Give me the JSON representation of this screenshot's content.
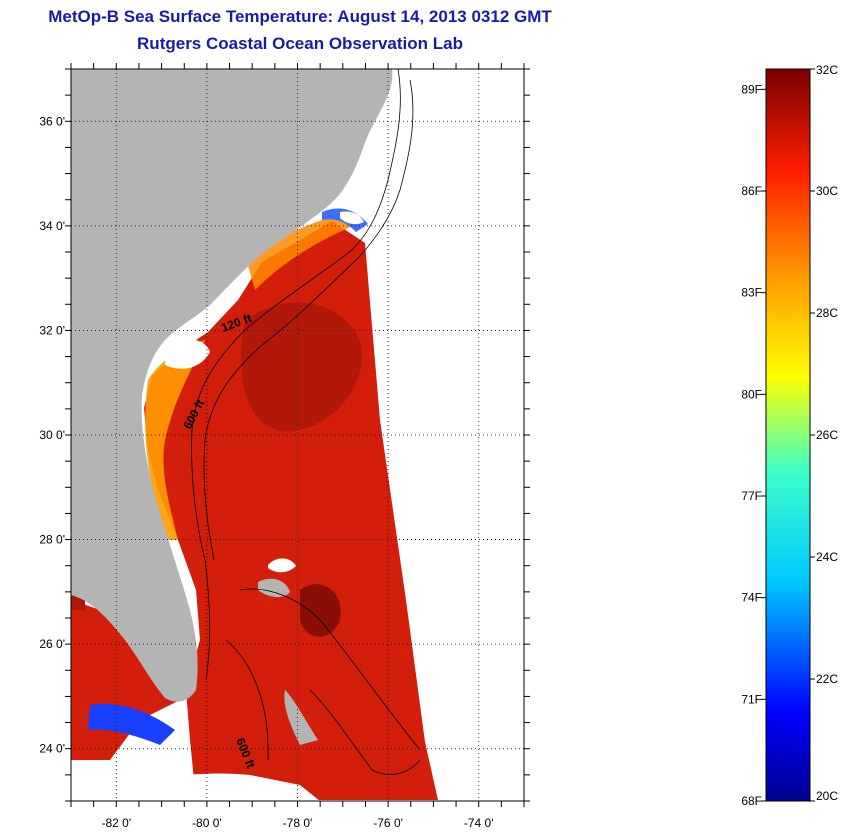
{
  "title": {
    "line1": "MetOp-B Sea Surface Temperature:  August 14, 2013 0312 GMT",
    "line2": "Rutgers Coastal Ocean Observation Lab"
  },
  "map": {
    "lon_ticks": [
      {
        "value": -82,
        "label": "-82 0'"
      },
      {
        "value": -80,
        "label": "-80 0'"
      },
      {
        "value": -78,
        "label": "-78 0'"
      },
      {
        "value": -76,
        "label": "-76 0'"
      },
      {
        "value": -74,
        "label": "-74 0'"
      }
    ],
    "lat_ticks": [
      {
        "value": 36,
        "label": "36 0'"
      },
      {
        "value": 34,
        "label": "34 0'"
      },
      {
        "value": 32,
        "label": "32 0'"
      },
      {
        "value": 30,
        "label": "30 0'"
      },
      {
        "value": 28,
        "label": "28 0'"
      },
      {
        "value": 26,
        "label": "26 0'"
      },
      {
        "value": 24,
        "label": "24 0'"
      }
    ],
    "lon_range": [
      -83,
      -73
    ],
    "lat_range": [
      23,
      37
    ],
    "contour_labels": [
      "120 ft",
      "600 ft",
      "600 ft"
    ],
    "colors": {
      "land": "#b4b4b4",
      "no_data": "#ffffff",
      "sst_warm": "#d21a0a",
      "sst_hot": "#8b0f06"
    }
  },
  "colorbar": {
    "celsius": [
      "32C",
      "30C",
      "28C",
      "26C",
      "24C",
      "22C",
      "20C"
    ],
    "fahrenheit": [
      "89F",
      "86F",
      "83F",
      "80F",
      "77F",
      "74F",
      "71F",
      "68F"
    ],
    "range_c": [
      20,
      32
    ]
  }
}
